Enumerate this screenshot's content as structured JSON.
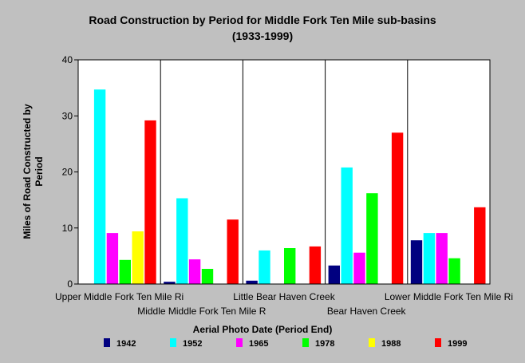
{
  "chart_data": {
    "type": "bar",
    "title": "Road Construction by Period for Middle Fork Ten Mile sub-basins",
    "subtitle": "(1933-1999)",
    "xlabel": "Aerial Photo Date (Period End)",
    "ylabel_lines": [
      "Miles of Road Constructed by",
      "Period"
    ],
    "ylim": [
      0,
      40
    ],
    "yticks": [
      0,
      10,
      20,
      30,
      40
    ],
    "grid": "vertical category separators",
    "legend_position": "bottom",
    "categories": [
      "Upper Middle Fork Ten Mile Ri",
      "Middle Middle Fork Ten Mile R",
      "Little Bear Haven Creek",
      "Bear Haven Creek",
      "Lower Middle Fork Ten Mile Ri"
    ],
    "series": [
      {
        "name": "1942",
        "color": "#000080",
        "values": [
          0,
          0.4,
          0.6,
          3.3,
          7.8
        ]
      },
      {
        "name": "1952",
        "color": "#00ffff",
        "values": [
          34.7,
          15.3,
          6.0,
          20.8,
          9.1
        ]
      },
      {
        "name": "1965",
        "color": "#ff00ff",
        "values": [
          9.1,
          4.4,
          0,
          5.6,
          9.1
        ]
      },
      {
        "name": "1978",
        "color": "#00ff00",
        "values": [
          4.3,
          2.7,
          6.4,
          16.2,
          4.6
        ]
      },
      {
        "name": "1988",
        "color": "#ffff00",
        "values": [
          9.4,
          0,
          0,
          0,
          0
        ]
      },
      {
        "name": "1999",
        "color": "#ff0000",
        "values": [
          29.2,
          11.5,
          6.7,
          27.0,
          13.7
        ]
      }
    ]
  }
}
